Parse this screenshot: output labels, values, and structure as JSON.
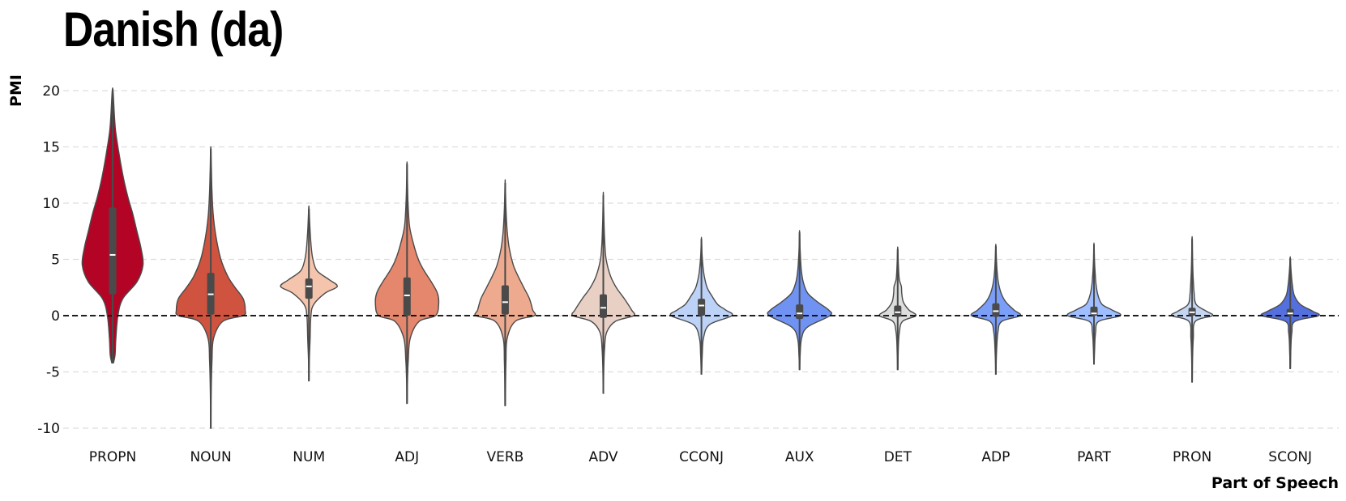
{
  "title": "Danish (da)",
  "chart_data": {
    "type": "violin",
    "title": "Danish (da)",
    "xlabel": "Part of Speech",
    "ylabel": "PMI",
    "ylim": [
      -10,
      20
    ],
    "yticks": [
      -10,
      -5,
      0,
      5,
      10,
      15,
      20
    ],
    "grid": "horizontal dashed",
    "reference_line": 0,
    "categories": [
      "PROPN",
      "NOUN",
      "NUM",
      "ADJ",
      "VERB",
      "ADV",
      "CCONJ",
      "AUX",
      "DET",
      "ADP",
      "PART",
      "PRON",
      "SCONJ"
    ],
    "violins": [
      {
        "label": "PROPN",
        "color": "#b40426",
        "min": -4.2,
        "q1": 1.9,
        "median": 5.4,
        "q3": 9.6,
        "max": 20.0,
        "profile": [
          [
            -4.2,
            0.02
          ],
          [
            -3.5,
            0.06
          ],
          [
            -2,
            0.08
          ],
          [
            0,
            0.13
          ],
          [
            1.5,
            0.25
          ],
          [
            3,
            0.6
          ],
          [
            4.5,
            0.75
          ],
          [
            6,
            0.7
          ],
          [
            7.5,
            0.6
          ],
          [
            9,
            0.5
          ],
          [
            10.5,
            0.38
          ],
          [
            12,
            0.28
          ],
          [
            13.5,
            0.2
          ],
          [
            15,
            0.13
          ],
          [
            16.5,
            0.07
          ],
          [
            18,
            0.04
          ],
          [
            20,
            0.01
          ]
        ]
      },
      {
        "label": "NOUN",
        "color": "#d0533f",
        "min": -10.0,
        "q1": 0.1,
        "median": 1.9,
        "q3": 3.8,
        "max": 14.8,
        "profile": [
          [
            -10,
            0.005
          ],
          [
            -7,
            0.01
          ],
          [
            -4,
            0.03
          ],
          [
            -2,
            0.07
          ],
          [
            -0.5,
            0.3
          ],
          [
            0,
            0.8
          ],
          [
            0.5,
            0.85
          ],
          [
            1.5,
            0.8
          ],
          [
            2.5,
            0.6
          ],
          [
            3.5,
            0.42
          ],
          [
            5,
            0.25
          ],
          [
            7,
            0.13
          ],
          [
            9,
            0.06
          ],
          [
            11,
            0.03
          ],
          [
            13,
            0.015
          ],
          [
            14.8,
            0.005
          ]
        ]
      },
      {
        "label": "NUM",
        "color": "#f4c4ad",
        "min": -5.8,
        "q1": 1.5,
        "median": 2.6,
        "q3": 3.3,
        "max": 9.5,
        "profile": [
          [
            -5.8,
            0.005
          ],
          [
            -4,
            0.01
          ],
          [
            -2,
            0.03
          ],
          [
            0,
            0.05
          ],
          [
            1,
            0.12
          ],
          [
            2,
            0.4
          ],
          [
            2.6,
            0.7
          ],
          [
            3.2,
            0.5
          ],
          [
            4,
            0.2
          ],
          [
            5,
            0.1
          ],
          [
            6,
            0.06
          ],
          [
            7.5,
            0.03
          ],
          [
            9.5,
            0.005
          ]
        ]
      },
      {
        "label": "ADJ",
        "color": "#e4876c",
        "min": -7.8,
        "q1": 0.0,
        "median": 1.8,
        "q3": 3.4,
        "max": 13.5,
        "profile": [
          [
            -7.8,
            0.005
          ],
          [
            -6,
            0.01
          ],
          [
            -4,
            0.03
          ],
          [
            -2,
            0.08
          ],
          [
            -0.5,
            0.3
          ],
          [
            0,
            0.7
          ],
          [
            1,
            0.78
          ],
          [
            2,
            0.75
          ],
          [
            3,
            0.6
          ],
          [
            4,
            0.42
          ],
          [
            5,
            0.28
          ],
          [
            6.5,
            0.15
          ],
          [
            8,
            0.06
          ],
          [
            10,
            0.025
          ],
          [
            12,
            0.01
          ],
          [
            13.5,
            0.003
          ]
        ]
      },
      {
        "label": "VERB",
        "color": "#eeaa8e",
        "min": -8.0,
        "q1": 0.1,
        "median": 1.2,
        "q3": 2.7,
        "max": 11.8,
        "profile": [
          [
            -8,
            0.005
          ],
          [
            -6,
            0.01
          ],
          [
            -4,
            0.02
          ],
          [
            -2,
            0.05
          ],
          [
            -0.5,
            0.25
          ],
          [
            0,
            0.72
          ],
          [
            0.5,
            0.68
          ],
          [
            1.5,
            0.6
          ],
          [
            2.5,
            0.46
          ],
          [
            3.5,
            0.32
          ],
          [
            4.5,
            0.2
          ],
          [
            6,
            0.1
          ],
          [
            7.5,
            0.05
          ],
          [
            9.5,
            0.02
          ],
          [
            11.8,
            0.003
          ]
        ]
      },
      {
        "label": "ADV",
        "color": "#e9d0c4",
        "min": -6.9,
        "q1": -0.2,
        "median": 0.7,
        "q3": 1.9,
        "max": 10.7,
        "profile": [
          [
            -6.9,
            0.005
          ],
          [
            -5,
            0.01
          ],
          [
            -3,
            0.03
          ],
          [
            -1.5,
            0.08
          ],
          [
            -0.5,
            0.3
          ],
          [
            0,
            0.75
          ],
          [
            0.5,
            0.7
          ],
          [
            1.5,
            0.52
          ],
          [
            2.5,
            0.32
          ],
          [
            3.5,
            0.18
          ],
          [
            5,
            0.07
          ],
          [
            6.5,
            0.035
          ],
          [
            8.5,
            0.015
          ],
          [
            10.7,
            0.003
          ]
        ]
      },
      {
        "label": "CCONJ",
        "color": "#bcd2f7",
        "min": -5.2,
        "q1": 0.0,
        "median": 0.9,
        "q3": 1.5,
        "max": 6.8,
        "profile": [
          [
            -5.2,
            0.005
          ],
          [
            -3.5,
            0.02
          ],
          [
            -2,
            0.05
          ],
          [
            -0.8,
            0.2
          ],
          [
            0,
            0.75
          ],
          [
            0.5,
            0.6
          ],
          [
            1,
            0.4
          ],
          [
            1.8,
            0.25
          ],
          [
            2.5,
            0.14
          ],
          [
            3.5,
            0.07
          ],
          [
            4.5,
            0.035
          ],
          [
            5.5,
            0.015
          ],
          [
            6.8,
            0.003
          ]
        ]
      },
      {
        "label": "AUX",
        "color": "#6f92f3",
        "min": -4.8,
        "q1": -0.3,
        "median": 0.2,
        "q3": 1.0,
        "max": 7.4,
        "profile": [
          [
            -4.8,
            0.005
          ],
          [
            -3.5,
            0.015
          ],
          [
            -2,
            0.05
          ],
          [
            -1,
            0.2
          ],
          [
            0,
            0.75
          ],
          [
            0.5,
            0.72
          ],
          [
            1.2,
            0.45
          ],
          [
            2,
            0.2
          ],
          [
            3,
            0.09
          ],
          [
            4,
            0.045
          ],
          [
            5,
            0.025
          ],
          [
            6,
            0.012
          ],
          [
            7.4,
            0.003
          ]
        ]
      },
      {
        "label": "DET",
        "color": "#dcdddd",
        "min": -4.8,
        "q1": -0.1,
        "median": 0.3,
        "q3": 0.9,
        "max": 5.9,
        "profile": [
          [
            -4.8,
            0.005
          ],
          [
            -3,
            0.015
          ],
          [
            -1.5,
            0.04
          ],
          [
            -0.5,
            0.12
          ],
          [
            0,
            0.45
          ],
          [
            0.5,
            0.28
          ],
          [
            1.2,
            0.14
          ],
          [
            2,
            0.1
          ],
          [
            2.6,
            0.09
          ],
          [
            3.2,
            0.04
          ],
          [
            4.2,
            0.02
          ],
          [
            5.9,
            0.003
          ]
        ]
      },
      {
        "label": "ADP",
        "color": "#7b9ff9",
        "min": -5.2,
        "q1": -0.1,
        "median": 0.4,
        "q3": 1.1,
        "max": 6.2,
        "profile": [
          [
            -5.2,
            0.005
          ],
          [
            -3.5,
            0.015
          ],
          [
            -1.5,
            0.05
          ],
          [
            -0.5,
            0.15
          ],
          [
            0,
            0.6
          ],
          [
            0.5,
            0.45
          ],
          [
            1.2,
            0.25
          ],
          [
            2,
            0.13
          ],
          [
            3,
            0.06
          ],
          [
            4,
            0.03
          ],
          [
            5,
            0.015
          ],
          [
            6.2,
            0.003
          ]
        ]
      },
      {
        "label": "PART",
        "color": "#9ebeff",
        "min": -4.3,
        "q1": 0.0,
        "median": 0.2,
        "q3": 0.8,
        "max": 6.3,
        "profile": [
          [
            -4.3,
            0.005
          ],
          [
            -3,
            0.015
          ],
          [
            -1.5,
            0.04
          ],
          [
            -0.5,
            0.12
          ],
          [
            0,
            0.65
          ],
          [
            0.5,
            0.45
          ],
          [
            1,
            0.2
          ],
          [
            1.8,
            0.1
          ],
          [
            2.8,
            0.05
          ],
          [
            4,
            0.025
          ],
          [
            5,
            0.012
          ],
          [
            6.3,
            0.003
          ]
        ]
      },
      {
        "label": "PRON",
        "color": "#c5d6f2",
        "min": -5.9,
        "q1": 0.0,
        "median": 0.3,
        "q3": 0.7,
        "max": 6.8,
        "profile": [
          [
            -5.9,
            0.005
          ],
          [
            -4,
            0.01
          ],
          [
            -2,
            0.03
          ],
          [
            -0.5,
            0.08
          ],
          [
            0,
            0.5
          ],
          [
            0.4,
            0.35
          ],
          [
            1,
            0.1
          ],
          [
            2,
            0.05
          ],
          [
            3.5,
            0.025
          ],
          [
            5,
            0.012
          ],
          [
            6.8,
            0.003
          ]
        ]
      },
      {
        "label": "SCONJ",
        "color": "#5470de",
        "min": -4.7,
        "q1": 0.0,
        "median": 0.2,
        "q3": 0.6,
        "max": 5.1,
        "profile": [
          [
            -4.7,
            0.005
          ],
          [
            -3,
            0.015
          ],
          [
            -1.5,
            0.04
          ],
          [
            -0.5,
            0.12
          ],
          [
            0,
            0.7
          ],
          [
            0.4,
            0.55
          ],
          [
            1,
            0.25
          ],
          [
            1.8,
            0.1
          ],
          [
            2.8,
            0.05
          ],
          [
            4,
            0.02
          ],
          [
            5.1,
            0.003
          ]
        ]
      }
    ]
  }
}
